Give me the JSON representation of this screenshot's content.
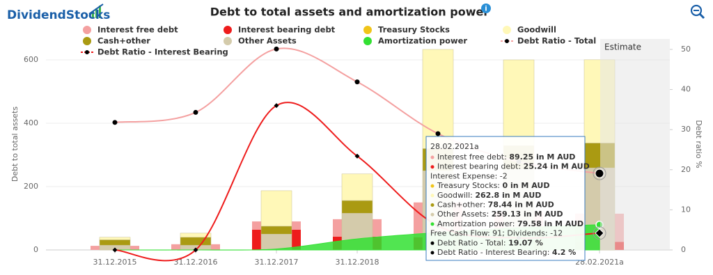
{
  "header": {
    "logo": "DividendStocks",
    "info": "i"
  },
  "chart_data": {
    "type": "combo",
    "title": "Debt to total assets and amortization power",
    "y_label": "Debt to total assets",
    "y2_label": "Debt ratio %",
    "estimate_label": "Estimate",
    "categories": [
      "31.12.2015",
      "31.12.2016",
      "31.12.2017",
      "31.12.2018",
      null,
      null,
      "28.02.2021a"
    ],
    "ylim": [
      0,
      666
    ],
    "yticks": [
      0,
      200,
      400,
      600
    ],
    "y2lim": [
      0,
      52.6
    ],
    "y2ticks": [
      0,
      10,
      20,
      30,
      40,
      50
    ],
    "grid": true,
    "series": [
      {
        "name": "Interest free debt",
        "color": "#f4a0a0",
        "type": "bar",
        "stack": "debt",
        "values": [
          13,
          18,
          26,
          55,
          110,
          90,
          89.25
        ]
      },
      {
        "name": "Interest bearing debt",
        "color": "#ee1c1c",
        "type": "bar",
        "stack": "debt",
        "values": [
          0,
          0,
          64,
          42,
          40,
          30,
          25.24
        ]
      },
      {
        "name": "Treasury Stocks",
        "color": "#f0c419",
        "type": "bar",
        "stack": "assets",
        "values": [
          0,
          0,
          0,
          0,
          0,
          0,
          0
        ]
      },
      {
        "name": "Goodwill",
        "color": "#fff8b8",
        "type": "bar",
        "stack": "assets",
        "values": [
          8,
          13,
          112,
          84,
          313,
          270,
          262.8
        ]
      },
      {
        "name": "Cash+other",
        "color": "#aa9a12",
        "type": "bar",
        "stack": "assets",
        "values": [
          17,
          25,
          25,
          40,
          70,
          75,
          78.44
        ]
      },
      {
        "name": "Other Assets",
        "color": "#d4cbab",
        "type": "bar",
        "stack": "assets",
        "values": [
          15,
          15,
          50,
          116,
          250,
          255,
          259.13
        ]
      },
      {
        "name": "Amortization power",
        "color": "#33e033",
        "type": "area",
        "values": [
          0,
          0,
          3,
          35,
          55,
          70,
          79.58
        ]
      },
      {
        "name": "Debt Ratio - Total",
        "color": "#f4a0a0",
        "type": "line",
        "marker": "circle",
        "axis": "y2",
        "values": [
          31.8,
          34.3,
          50.1,
          41.9,
          29,
          22,
          19.07
        ]
      },
      {
        "name": "Debt Ratio - Interest Bearing",
        "color": "#ee1c1c",
        "type": "line",
        "marker": "diamond",
        "axis": "y2",
        "values": [
          0,
          0,
          36,
          23.4,
          6,
          3,
          4.2
        ]
      }
    ],
    "tooltip": {
      "title": "28.02.2021a",
      "rows": [
        {
          "label": "Interest free debt:",
          "value": "89.25 in M AUD",
          "color": "#f4a0a0"
        },
        {
          "label": "Interest bearing debt:",
          "value": "25.24 in M AUD",
          "color": "#ee1c1c"
        },
        {
          "text": "Interest Expense: -2"
        },
        {
          "label": "Treasury Stocks:",
          "value": "0 in M AUD",
          "color": "#f0c419"
        },
        {
          "label": "Goodwill:",
          "value": "262.8 in M AUD",
          "color": "#fff8b8"
        },
        {
          "label": "Cash+other:",
          "value": "78.44 in M AUD",
          "color": "#aa9a12"
        },
        {
          "label": "Other Assets:",
          "value": "259.13 in M AUD",
          "color": "#d4cbab"
        },
        {
          "label": "Amortization power:",
          "value": "79.58 in M AUD",
          "color": "#33e033"
        },
        {
          "text": "Free Cash Flow: 91; Dividends: -12"
        },
        {
          "label": "Debt Ratio - Total:",
          "value": "19.07 %",
          "color": "#000000"
        },
        {
          "label": "Debt Ratio - Interest Bearing:",
          "value": "4.2 %",
          "color": "#000000"
        }
      ]
    }
  }
}
